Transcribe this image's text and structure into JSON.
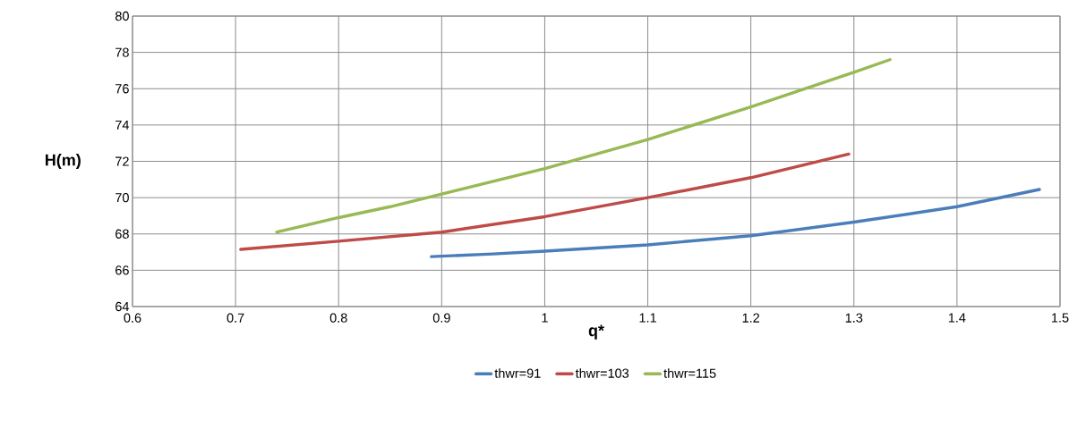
{
  "chart_data": {
    "type": "line",
    "xlabel": "q*",
    "ylabel": "H(m)",
    "xlim": [
      0.6,
      1.5
    ],
    "xticks": [
      0.6,
      0.7,
      0.8,
      0.9,
      1,
      1.1,
      1.2,
      1.3,
      1.4,
      1.5
    ],
    "ylim": [
      64,
      80
    ],
    "yticks": [
      64,
      66,
      68,
      70,
      72,
      74,
      76,
      78,
      80
    ],
    "grid": true,
    "legend": "bottom",
    "marker": "none",
    "line_style": "solid",
    "series": [
      {
        "name": "thwr=91",
        "color": "#4a7ebb",
        "x": [
          0.89,
          0.95,
          1.0,
          1.1,
          1.2,
          1.3,
          1.4,
          1.48
        ],
        "values": [
          66.75,
          66.9,
          67.05,
          67.4,
          67.9,
          68.65,
          69.5,
          70.45
        ]
      },
      {
        "name": "thwr=103",
        "color": "#be4b48",
        "x": [
          0.705,
          0.8,
          0.9,
          1.0,
          1.1,
          1.2,
          1.295
        ],
        "values": [
          67.15,
          67.6,
          68.1,
          68.95,
          70.0,
          71.1,
          72.4
        ]
      },
      {
        "name": "thwr=115",
        "color": "#98b954",
        "x": [
          0.74,
          0.8,
          0.85,
          0.9,
          1.0,
          1.1,
          1.2,
          1.3,
          1.335
        ],
        "values": [
          68.1,
          68.9,
          69.5,
          70.2,
          71.6,
          73.2,
          75.0,
          76.9,
          77.6
        ]
      }
    ]
  }
}
